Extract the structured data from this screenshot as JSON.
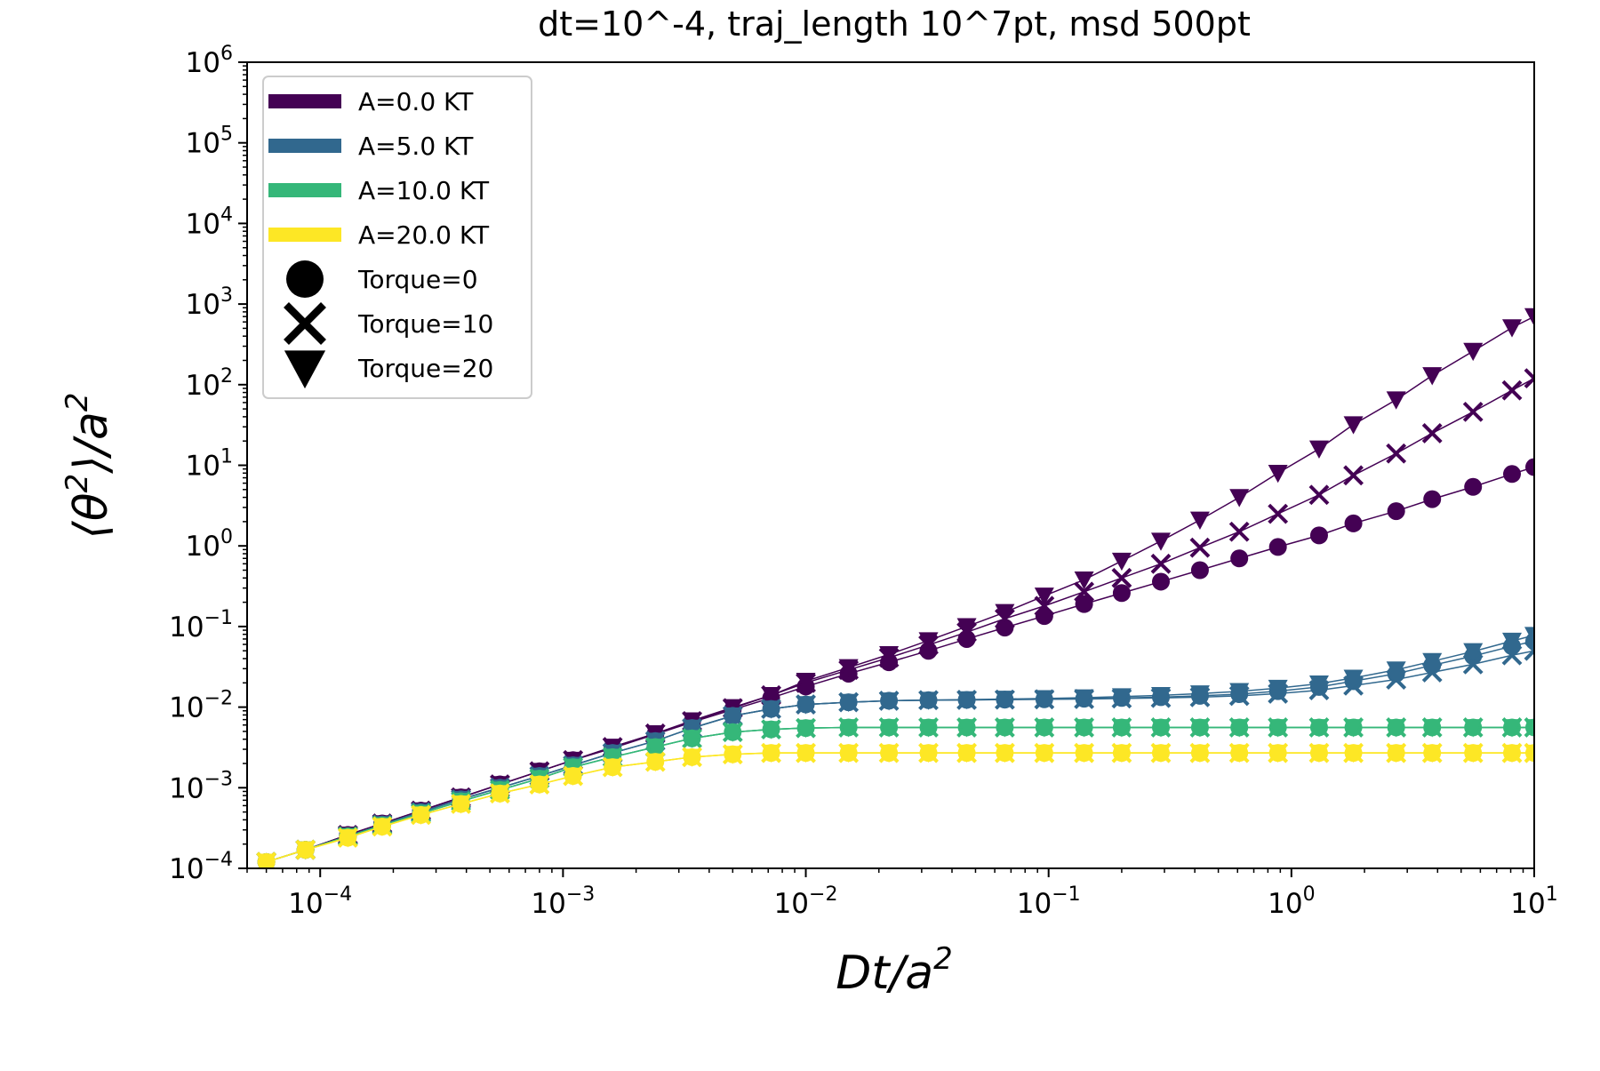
{
  "chart_data": {
    "type": "line",
    "title": "dt=10^-4, traj_length 10^7pt, msd 500pt",
    "xlabel_parts": {
      "base": "Dt/a",
      "sup": "2"
    },
    "ylabel_parts": {
      "base": "⟨θ",
      "sup1": "2",
      "mid": "⟩/a",
      "sup2": "2"
    },
    "x_scale": "log",
    "y_scale": "log",
    "xlim": [
      5e-05,
      10
    ],
    "ylim": [
      0.0001,
      1000000
    ],
    "x_ticks": [
      {
        "base": "10",
        "exp": "−4",
        "value": 0.0001
      },
      {
        "base": "10",
        "exp": "−3",
        "value": 0.001
      },
      {
        "base": "10",
        "exp": "−2",
        "value": 0.01
      },
      {
        "base": "10",
        "exp": "−1",
        "value": 0.1
      },
      {
        "base": "10",
        "exp": "0",
        "value": 1
      },
      {
        "base": "10",
        "exp": "1",
        "value": 10
      }
    ],
    "y_ticks": [
      {
        "base": "10",
        "exp": "−4",
        "value": 0.0001
      },
      {
        "base": "10",
        "exp": "−3",
        "value": 0.001
      },
      {
        "base": "10",
        "exp": "−2",
        "value": 0.01
      },
      {
        "base": "10",
        "exp": "−1",
        "value": 0.1
      },
      {
        "base": "10",
        "exp": "0",
        "value": 1
      },
      {
        "base": "10",
        "exp": "1",
        "value": 10
      },
      {
        "base": "10",
        "exp": "2",
        "value": 100
      },
      {
        "base": "10",
        "exp": "3",
        "value": 1000
      },
      {
        "base": "10",
        "exp": "4",
        "value": 10000
      },
      {
        "base": "10",
        "exp": "5",
        "value": 100000
      },
      {
        "base": "10",
        "exp": "6",
        "value": 1000000
      }
    ],
    "grid": false,
    "legend_position": "top-left",
    "x": [
      6e-05,
      8.7e-05,
      0.00013,
      0.00018,
      0.00026,
      0.00038,
      0.00055,
      0.0008,
      0.0011,
      0.0016,
      0.0024,
      0.0034,
      0.005,
      0.0072,
      0.01,
      0.015,
      0.022,
      0.032,
      0.046,
      0.066,
      0.096,
      0.14,
      0.2,
      0.29,
      0.42,
      0.61,
      0.88,
      1.3,
      1.8,
      2.7,
      3.8,
      5.6,
      8.1,
      10
    ],
    "series": [
      {
        "name": "A=0.0 KT, Torque=0",
        "potential": "A=0.0 KT",
        "torque": "Torque=0",
        "marker": "circle",
        "color": "#440154",
        "values": [
          0.00012,
          0.00017,
          0.00026,
          0.00036,
          0.00052,
          0.00076,
          0.0011,
          0.0016,
          0.0022,
          0.0031,
          0.0046,
          0.0065,
          0.0093,
          0.013,
          0.018,
          0.026,
          0.036,
          0.05,
          0.07,
          0.097,
          0.135,
          0.19,
          0.26,
          0.36,
          0.5,
          0.7,
          0.97,
          1.35,
          1.9,
          2.7,
          3.8,
          5.4,
          7.8,
          9.5
        ]
      },
      {
        "name": "A=0.0 KT, Torque=10",
        "potential": "A=0.0 KT",
        "torque": "Torque=10",
        "marker": "x",
        "color": "#440154",
        "values": [
          0.00012,
          0.00017,
          0.00026,
          0.00036,
          0.00052,
          0.00076,
          0.0011,
          0.0016,
          0.0022,
          0.0032,
          0.0047,
          0.0067,
          0.0097,
          0.014,
          0.02,
          0.029,
          0.041,
          0.059,
          0.085,
          0.125,
          0.18,
          0.27,
          0.4,
          0.6,
          0.95,
          1.5,
          2.5,
          4.3,
          7.5,
          14,
          25,
          46,
          85,
          120
        ]
      },
      {
        "name": "A=0.0 KT, Torque=20",
        "potential": "A=0.0 KT",
        "torque": "Torque=20",
        "marker": "triangle",
        "color": "#440154",
        "values": [
          0.00012,
          0.00017,
          0.00026,
          0.00036,
          0.00052,
          0.00076,
          0.0011,
          0.0016,
          0.0022,
          0.0032,
          0.0047,
          0.0068,
          0.0099,
          0.014,
          0.021,
          0.031,
          0.045,
          0.067,
          0.1,
          0.15,
          0.24,
          0.38,
          0.65,
          1.15,
          2.1,
          4,
          8,
          16,
          32,
          65,
          130,
          260,
          510,
          700
        ]
      },
      {
        "name": "A=5.0 KT, Torque=0",
        "potential": "A=5.0 KT",
        "torque": "Torque=0",
        "marker": "circle",
        "color": "#31688e",
        "values": [
          0.00012,
          0.00017,
          0.00025,
          0.00035,
          0.0005,
          0.00072,
          0.001,
          0.0014,
          0.0019,
          0.0027,
          0.0038,
          0.0055,
          0.0078,
          0.0095,
          0.0108,
          0.0115,
          0.012,
          0.0122,
          0.0123,
          0.0124,
          0.0125,
          0.0127,
          0.013,
          0.0133,
          0.0138,
          0.0145,
          0.0158,
          0.0178,
          0.021,
          0.026,
          0.033,
          0.043,
          0.057,
          0.066
        ]
      },
      {
        "name": "A=5.0 KT, Torque=10",
        "potential": "A=5.0 KT",
        "torque": "Torque=10",
        "marker": "x",
        "color": "#31688e",
        "values": [
          0.00012,
          0.00017,
          0.00025,
          0.00035,
          0.0005,
          0.00072,
          0.001,
          0.0014,
          0.0019,
          0.0027,
          0.0038,
          0.0055,
          0.0078,
          0.0095,
          0.0108,
          0.0115,
          0.012,
          0.0122,
          0.0123,
          0.0124,
          0.0125,
          0.0126,
          0.0128,
          0.013,
          0.0133,
          0.0138,
          0.0147,
          0.0162,
          0.0185,
          0.022,
          0.027,
          0.034,
          0.044,
          0.05
        ]
      },
      {
        "name": "A=5.0 KT, Torque=20",
        "potential": "A=5.0 KT",
        "torque": "Torque=20",
        "marker": "triangle",
        "color": "#31688e",
        "values": [
          0.00012,
          0.00017,
          0.00025,
          0.00035,
          0.0005,
          0.00072,
          0.001,
          0.0014,
          0.0019,
          0.0027,
          0.0038,
          0.0055,
          0.0078,
          0.0095,
          0.0108,
          0.0115,
          0.012,
          0.0122,
          0.0124,
          0.0126,
          0.0128,
          0.0131,
          0.0135,
          0.014,
          0.0147,
          0.0157,
          0.0172,
          0.0195,
          0.023,
          0.029,
          0.037,
          0.049,
          0.066,
          0.078
        ]
      },
      {
        "name": "A=10.0 KT, Torque=0",
        "potential": "A=10.0 KT",
        "torque": "Torque=0",
        "marker": "circle",
        "color": "#35b779",
        "values": [
          0.00012,
          0.00017,
          0.00025,
          0.00034,
          0.00048,
          0.00068,
          0.00094,
          0.0013,
          0.0018,
          0.0024,
          0.0032,
          0.0041,
          0.0049,
          0.0053,
          0.0055,
          0.0056,
          0.0056,
          0.0056,
          0.0056,
          0.0056,
          0.0056,
          0.0056,
          0.0056,
          0.0056,
          0.0056,
          0.0056,
          0.0056,
          0.0056,
          0.0056,
          0.0056,
          0.0056,
          0.0056,
          0.0056,
          0.0056
        ]
      },
      {
        "name": "A=10.0 KT, Torque=10",
        "potential": "A=10.0 KT",
        "torque": "Torque=10",
        "marker": "x",
        "color": "#35b779",
        "values": [
          0.00012,
          0.00017,
          0.00025,
          0.00034,
          0.00048,
          0.00068,
          0.00094,
          0.0013,
          0.0018,
          0.0024,
          0.0032,
          0.0041,
          0.0049,
          0.0053,
          0.0055,
          0.0056,
          0.0056,
          0.0056,
          0.0056,
          0.0056,
          0.0056,
          0.0056,
          0.0056,
          0.0056,
          0.0056,
          0.0056,
          0.0056,
          0.0056,
          0.0056,
          0.0056,
          0.0056,
          0.0056,
          0.0056,
          0.0056
        ]
      },
      {
        "name": "A=10.0 KT, Torque=20",
        "potential": "A=10.0 KT",
        "torque": "Torque=20",
        "marker": "triangle",
        "color": "#35b779",
        "values": [
          0.00012,
          0.00017,
          0.00025,
          0.00034,
          0.00048,
          0.00068,
          0.00094,
          0.0013,
          0.0018,
          0.0024,
          0.0032,
          0.0041,
          0.0049,
          0.0053,
          0.0055,
          0.0056,
          0.0056,
          0.0056,
          0.0056,
          0.0056,
          0.0056,
          0.0056,
          0.0056,
          0.0056,
          0.0056,
          0.0056,
          0.0056,
          0.0056,
          0.0056,
          0.0056,
          0.0056,
          0.0056,
          0.0056,
          0.0056
        ]
      },
      {
        "name": "A=20.0 KT, Torque=0",
        "potential": "A=20.0 KT",
        "torque": "Torque=0",
        "marker": "circle",
        "color": "#fde725",
        "values": [
          0.00012,
          0.00017,
          0.00024,
          0.00033,
          0.00046,
          0.00063,
          0.00085,
          0.0011,
          0.0014,
          0.0018,
          0.0021,
          0.0024,
          0.0026,
          0.0027,
          0.0027,
          0.0027,
          0.0027,
          0.0027,
          0.0027,
          0.0027,
          0.0027,
          0.0027,
          0.0027,
          0.0027,
          0.0027,
          0.0027,
          0.0027,
          0.0027,
          0.0027,
          0.0027,
          0.0027,
          0.0027,
          0.0027,
          0.0027
        ]
      },
      {
        "name": "A=20.0 KT, Torque=10",
        "potential": "A=20.0 KT",
        "torque": "Torque=10",
        "marker": "x",
        "color": "#fde725",
        "values": [
          0.00012,
          0.00017,
          0.00024,
          0.00033,
          0.00046,
          0.00063,
          0.00085,
          0.0011,
          0.0014,
          0.0018,
          0.0021,
          0.0024,
          0.0026,
          0.0027,
          0.0027,
          0.0027,
          0.0027,
          0.0027,
          0.0027,
          0.0027,
          0.0027,
          0.0027,
          0.0027,
          0.0027,
          0.0027,
          0.0027,
          0.0027,
          0.0027,
          0.0027,
          0.0027,
          0.0027,
          0.0027,
          0.0027,
          0.0027
        ]
      },
      {
        "name": "A=20.0 KT, Torque=20",
        "potential": "A=20.0 KT",
        "torque": "Torque=20",
        "marker": "triangle",
        "color": "#fde725",
        "values": [
          0.00012,
          0.00017,
          0.00024,
          0.00033,
          0.00046,
          0.00063,
          0.00085,
          0.0011,
          0.0014,
          0.0018,
          0.0021,
          0.0024,
          0.0026,
          0.0027,
          0.0027,
          0.0027,
          0.0027,
          0.0027,
          0.0027,
          0.0027,
          0.0027,
          0.0027,
          0.0027,
          0.0027,
          0.0027,
          0.0027,
          0.0027,
          0.0027,
          0.0027,
          0.0027,
          0.0027,
          0.0027,
          0.0027,
          0.0027
        ]
      }
    ],
    "legend": {
      "colors": [
        {
          "label": "A=0.0 KT",
          "color": "#440154"
        },
        {
          "label": "A=5.0 KT",
          "color": "#31688e"
        },
        {
          "label": "A=10.0 KT",
          "color": "#35b779"
        },
        {
          "label": "A=20.0 KT",
          "color": "#fde725"
        }
      ],
      "markers": [
        {
          "label": "Torque=0",
          "marker": "circle"
        },
        {
          "label": "Torque=10",
          "marker": "x"
        },
        {
          "label": "Torque=20",
          "marker": "triangle"
        }
      ]
    }
  }
}
